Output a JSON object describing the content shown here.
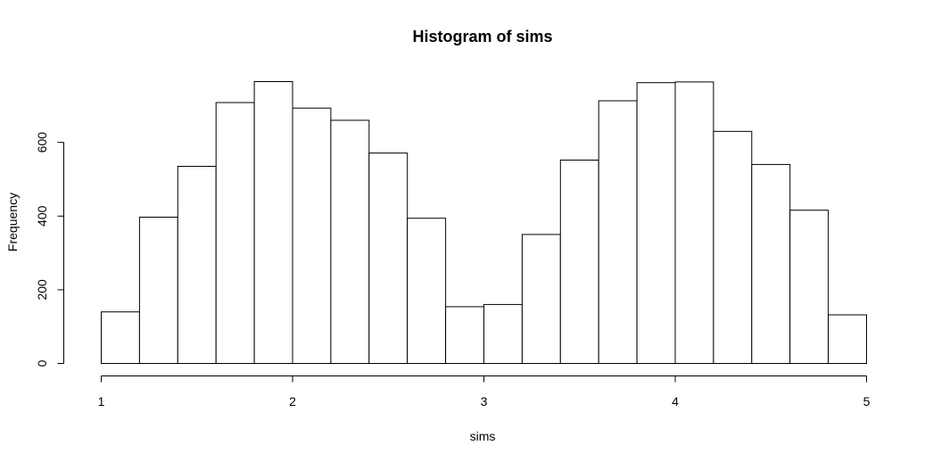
{
  "chart_data": {
    "type": "bar",
    "title": "Histogram of sims",
    "xlabel": "sims",
    "ylabel": "Frequency",
    "bin_edges": [
      1.0,
      1.2,
      1.4,
      1.6,
      1.8,
      2.0,
      2.2,
      2.4,
      2.6,
      2.8,
      3.0,
      3.2,
      3.4,
      3.6,
      3.8,
      4.0,
      4.2,
      4.4,
      4.6,
      4.8,
      5.0
    ],
    "values": [
      140,
      397,
      535,
      708,
      765,
      693,
      660,
      571,
      394,
      154,
      160,
      350,
      552,
      713,
      762,
      764,
      630,
      540,
      416,
      132
    ],
    "xlim": [
      1,
      5
    ],
    "ylim": [
      0,
      765
    ],
    "x_ticks": [
      1,
      2,
      3,
      4,
      5
    ],
    "y_ticks": [
      0,
      200,
      400,
      600
    ],
    "grid": false,
    "colors": {
      "bar_fill": "#ffffff",
      "bar_stroke": "#000000"
    }
  }
}
